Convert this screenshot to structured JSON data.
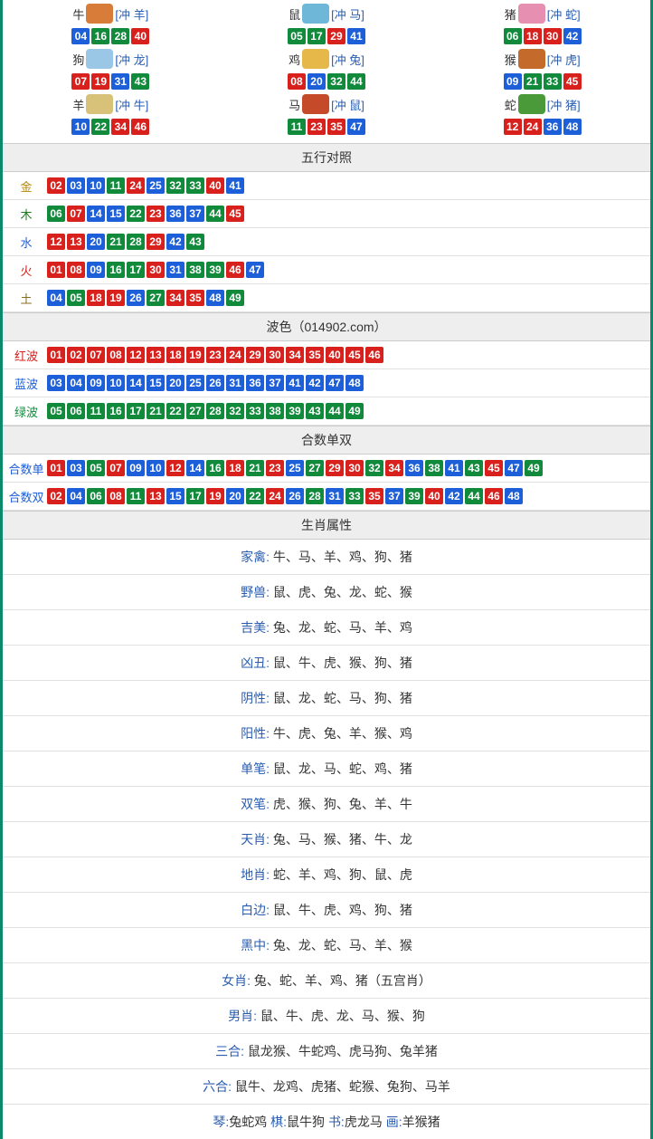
{
  "colors": {
    "brand_border": "#0a8a6a",
    "red": "#d8201c",
    "blue": "#1c5fd8",
    "green": "#128a3c",
    "header_bg": "#eeeeee",
    "border": "#e0e0e0",
    "link": "#2a5db0"
  },
  "zodiac_icon_bg": {
    "牛": "#d87c3a",
    "鼠": "#6fb7d8",
    "猪": "#e78fb0",
    "狗": "#9ac7e6",
    "鸡": "#e6b84a",
    "猴": "#c46a2a",
    "羊": "#d8c27a",
    "马": "#c44a2a",
    "蛇": "#4a9a3a"
  },
  "zodiac": [
    {
      "name": "牛",
      "clash": "[冲 羊]",
      "nums": [
        [
          "04",
          "blue"
        ],
        [
          "16",
          "green"
        ],
        [
          "28",
          "green"
        ],
        [
          "40",
          "red"
        ]
      ]
    },
    {
      "name": "鼠",
      "clash": "[冲 马]",
      "nums": [
        [
          "05",
          "green"
        ],
        [
          "17",
          "green"
        ],
        [
          "29",
          "red"
        ],
        [
          "41",
          "blue"
        ]
      ]
    },
    {
      "name": "猪",
      "clash": "[冲 蛇]",
      "nums": [
        [
          "06",
          "green"
        ],
        [
          "18",
          "red"
        ],
        [
          "30",
          "red"
        ],
        [
          "42",
          "blue"
        ]
      ]
    },
    {
      "name": "狗",
      "clash": "[冲 龙]",
      "nums": [
        [
          "07",
          "red"
        ],
        [
          "19",
          "red"
        ],
        [
          "31",
          "blue"
        ],
        [
          "43",
          "green"
        ]
      ]
    },
    {
      "name": "鸡",
      "clash": "[冲 兔]",
      "nums": [
        [
          "08",
          "red"
        ],
        [
          "20",
          "blue"
        ],
        [
          "32",
          "green"
        ],
        [
          "44",
          "green"
        ]
      ]
    },
    {
      "name": "猴",
      "clash": "[冲 虎]",
      "nums": [
        [
          "09",
          "blue"
        ],
        [
          "21",
          "green"
        ],
        [
          "33",
          "green"
        ],
        [
          "45",
          "red"
        ]
      ]
    },
    {
      "name": "羊",
      "clash": "[冲 牛]",
      "nums": [
        [
          "10",
          "blue"
        ],
        [
          "22",
          "green"
        ],
        [
          "34",
          "red"
        ],
        [
          "46",
          "red"
        ]
      ]
    },
    {
      "name": "马",
      "clash": "[冲 鼠]",
      "nums": [
        [
          "11",
          "green"
        ],
        [
          "23",
          "red"
        ],
        [
          "35",
          "red"
        ],
        [
          "47",
          "blue"
        ]
      ]
    },
    {
      "name": "蛇",
      "clash": "[冲 猪]",
      "nums": [
        [
          "12",
          "red"
        ],
        [
          "24",
          "red"
        ],
        [
          "36",
          "blue"
        ],
        [
          "48",
          "blue"
        ]
      ]
    }
  ],
  "sections": {
    "wuxing_title": "五行对照",
    "bose_title": "波色（014902.com）",
    "heshu_title": "合数单双",
    "shengxiao_title": "生肖属性"
  },
  "wuxing": [
    {
      "label": "金",
      "label_class": "lbl-gold",
      "nums": [
        [
          "02",
          "red"
        ],
        [
          "03",
          "blue"
        ],
        [
          "10",
          "blue"
        ],
        [
          "11",
          "green"
        ],
        [
          "24",
          "red"
        ],
        [
          "25",
          "blue"
        ],
        [
          "32",
          "green"
        ],
        [
          "33",
          "green"
        ],
        [
          "40",
          "red"
        ],
        [
          "41",
          "blue"
        ]
      ]
    },
    {
      "label": "木",
      "label_class": "lbl-wood",
      "nums": [
        [
          "06",
          "green"
        ],
        [
          "07",
          "red"
        ],
        [
          "14",
          "blue"
        ],
        [
          "15",
          "blue"
        ],
        [
          "22",
          "green"
        ],
        [
          "23",
          "red"
        ],
        [
          "36",
          "blue"
        ],
        [
          "37",
          "blue"
        ],
        [
          "44",
          "green"
        ],
        [
          "45",
          "red"
        ]
      ]
    },
    {
      "label": "水",
      "label_class": "lbl-water",
      "nums": [
        [
          "12",
          "red"
        ],
        [
          "13",
          "red"
        ],
        [
          "20",
          "blue"
        ],
        [
          "21",
          "green"
        ],
        [
          "28",
          "green"
        ],
        [
          "29",
          "red"
        ],
        [
          "42",
          "blue"
        ],
        [
          "43",
          "green"
        ]
      ]
    },
    {
      "label": "火",
      "label_class": "lbl-fire",
      "nums": [
        [
          "01",
          "red"
        ],
        [
          "08",
          "red"
        ],
        [
          "09",
          "blue"
        ],
        [
          "16",
          "green"
        ],
        [
          "17",
          "green"
        ],
        [
          "30",
          "red"
        ],
        [
          "31",
          "blue"
        ],
        [
          "38",
          "green"
        ],
        [
          "39",
          "green"
        ],
        [
          "46",
          "red"
        ],
        [
          "47",
          "blue"
        ]
      ]
    },
    {
      "label": "土",
      "label_class": "lbl-earth",
      "nums": [
        [
          "04",
          "blue"
        ],
        [
          "05",
          "green"
        ],
        [
          "18",
          "red"
        ],
        [
          "19",
          "red"
        ],
        [
          "26",
          "blue"
        ],
        [
          "27",
          "green"
        ],
        [
          "34",
          "red"
        ],
        [
          "35",
          "red"
        ],
        [
          "48",
          "blue"
        ],
        [
          "49",
          "green"
        ]
      ]
    }
  ],
  "bose": [
    {
      "label": "红波",
      "label_class": "lbl-red",
      "nums": [
        [
          "01",
          "red"
        ],
        [
          "02",
          "red"
        ],
        [
          "07",
          "red"
        ],
        [
          "08",
          "red"
        ],
        [
          "12",
          "red"
        ],
        [
          "13",
          "red"
        ],
        [
          "18",
          "red"
        ],
        [
          "19",
          "red"
        ],
        [
          "23",
          "red"
        ],
        [
          "24",
          "red"
        ],
        [
          "29",
          "red"
        ],
        [
          "30",
          "red"
        ],
        [
          "34",
          "red"
        ],
        [
          "35",
          "red"
        ],
        [
          "40",
          "red"
        ],
        [
          "45",
          "red"
        ],
        [
          "46",
          "red"
        ]
      ]
    },
    {
      "label": "蓝波",
      "label_class": "lbl-blue",
      "nums": [
        [
          "03",
          "blue"
        ],
        [
          "04",
          "blue"
        ],
        [
          "09",
          "blue"
        ],
        [
          "10",
          "blue"
        ],
        [
          "14",
          "blue"
        ],
        [
          "15",
          "blue"
        ],
        [
          "20",
          "blue"
        ],
        [
          "25",
          "blue"
        ],
        [
          "26",
          "blue"
        ],
        [
          "31",
          "blue"
        ],
        [
          "36",
          "blue"
        ],
        [
          "37",
          "blue"
        ],
        [
          "41",
          "blue"
        ],
        [
          "42",
          "blue"
        ],
        [
          "47",
          "blue"
        ],
        [
          "48",
          "blue"
        ]
      ]
    },
    {
      "label": "绿波",
      "label_class": "lbl-green",
      "nums": [
        [
          "05",
          "green"
        ],
        [
          "06",
          "green"
        ],
        [
          "11",
          "green"
        ],
        [
          "16",
          "green"
        ],
        [
          "17",
          "green"
        ],
        [
          "21",
          "green"
        ],
        [
          "22",
          "green"
        ],
        [
          "27",
          "green"
        ],
        [
          "28",
          "green"
        ],
        [
          "32",
          "green"
        ],
        [
          "33",
          "green"
        ],
        [
          "38",
          "green"
        ],
        [
          "39",
          "green"
        ],
        [
          "43",
          "green"
        ],
        [
          "44",
          "green"
        ],
        [
          "49",
          "green"
        ]
      ]
    }
  ],
  "heshu": [
    {
      "label": "合数单",
      "label_class": "lbl-blue",
      "nums": [
        [
          "01",
          "red"
        ],
        [
          "03",
          "blue"
        ],
        [
          "05",
          "green"
        ],
        [
          "07",
          "red"
        ],
        [
          "09",
          "blue"
        ],
        [
          "10",
          "blue"
        ],
        [
          "12",
          "red"
        ],
        [
          "14",
          "blue"
        ],
        [
          "16",
          "green"
        ],
        [
          "18",
          "red"
        ],
        [
          "21",
          "green"
        ],
        [
          "23",
          "red"
        ],
        [
          "25",
          "blue"
        ],
        [
          "27",
          "green"
        ],
        [
          "29",
          "red"
        ],
        [
          "30",
          "red"
        ],
        [
          "32",
          "green"
        ],
        [
          "34",
          "red"
        ],
        [
          "36",
          "blue"
        ],
        [
          "38",
          "green"
        ],
        [
          "41",
          "blue"
        ],
        [
          "43",
          "green"
        ],
        [
          "45",
          "red"
        ],
        [
          "47",
          "blue"
        ],
        [
          "49",
          "green"
        ]
      ]
    },
    {
      "label": "合数双",
      "label_class": "lbl-blue",
      "nums": [
        [
          "02",
          "red"
        ],
        [
          "04",
          "blue"
        ],
        [
          "06",
          "green"
        ],
        [
          "08",
          "red"
        ],
        [
          "11",
          "green"
        ],
        [
          "13",
          "red"
        ],
        [
          "15",
          "blue"
        ],
        [
          "17",
          "green"
        ],
        [
          "19",
          "red"
        ],
        [
          "20",
          "blue"
        ],
        [
          "22",
          "green"
        ],
        [
          "24",
          "red"
        ],
        [
          "26",
          "blue"
        ],
        [
          "28",
          "green"
        ],
        [
          "31",
          "blue"
        ],
        [
          "33",
          "green"
        ],
        [
          "35",
          "red"
        ],
        [
          "37",
          "blue"
        ],
        [
          "39",
          "green"
        ],
        [
          "40",
          "red"
        ],
        [
          "42",
          "blue"
        ],
        [
          "44",
          "green"
        ],
        [
          "46",
          "red"
        ],
        [
          "48",
          "blue"
        ]
      ]
    }
  ],
  "attrs": [
    {
      "label": "家禽:",
      "vals": "牛、马、羊、鸡、狗、猪"
    },
    {
      "label": "野兽:",
      "vals": "鼠、虎、兔、龙、蛇、猴"
    },
    {
      "label": "吉美:",
      "vals": "兔、龙、蛇、马、羊、鸡"
    },
    {
      "label": "凶丑:",
      "vals": "鼠、牛、虎、猴、狗、猪"
    },
    {
      "label": "阴性:",
      "vals": "鼠、龙、蛇、马、狗、猪"
    },
    {
      "label": "阳性:",
      "vals": "牛、虎、兔、羊、猴、鸡"
    },
    {
      "label": "单笔:",
      "vals": "鼠、龙、马、蛇、鸡、猪"
    },
    {
      "label": "双笔:",
      "vals": "虎、猴、狗、兔、羊、牛"
    },
    {
      "label": "天肖:",
      "vals": "兔、马、猴、猪、牛、龙"
    },
    {
      "label": "地肖:",
      "vals": "蛇、羊、鸡、狗、鼠、虎"
    },
    {
      "label": "白边:",
      "vals": "鼠、牛、虎、鸡、狗、猪"
    },
    {
      "label": "黑中:",
      "vals": "兔、龙、蛇、马、羊、猴"
    },
    {
      "label": "女肖:",
      "vals": "兔、蛇、羊、鸡、猪（五宫肖）"
    },
    {
      "label": "男肖:",
      "vals": "鼠、牛、虎、龙、马、猴、狗"
    },
    {
      "label": "三合:",
      "vals": "鼠龙猴、牛蛇鸡、虎马狗、兔羊猪"
    },
    {
      "label": "六合:",
      "vals": "鼠牛、龙鸡、虎猪、蛇猴、兔狗、马羊"
    }
  ],
  "footer_line": {
    "pairs": [
      {
        "k": "琴:",
        "v": "兔蛇鸡"
      },
      {
        "k": "棋:",
        "v": "鼠牛狗"
      },
      {
        "k": "书:",
        "v": "虎龙马"
      },
      {
        "k": "画:",
        "v": "羊猴猪"
      }
    ]
  }
}
